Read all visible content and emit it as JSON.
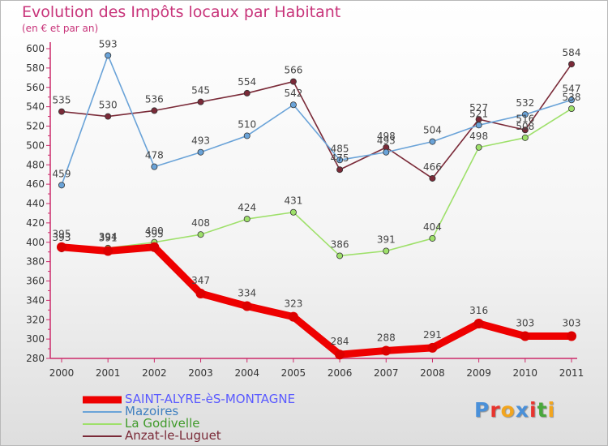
{
  "chart_data": {
    "type": "line",
    "title": "Evolution des Impôts locaux par Habitant",
    "subtitle": "(en € et par an)",
    "xlabel": "",
    "ylabel": "",
    "categories": [
      "2000",
      "2001",
      "2002",
      "2003",
      "2004",
      "2005",
      "2006",
      "2007",
      "2008",
      "2009",
      "2010",
      "2011"
    ],
    "ylim": [
      280,
      600
    ],
    "yticks": [
      "280",
      "300",
      "320",
      "340",
      "360",
      "380",
      "400",
      "420",
      "440",
      "460",
      "480",
      "500",
      "520",
      "540",
      "560",
      "580",
      "600"
    ],
    "grid": false,
    "legend_position": "bottom-left",
    "series": [
      {
        "name": "SAINT-ALYRE-èS-MONTAGNE",
        "color": "#ee0000",
        "legend_color": "#5a5aff",
        "values": [
          395,
          391,
          395,
          347,
          334,
          323,
          284,
          288,
          291,
          316,
          303,
          303
        ],
        "labels": [
          "395",
          "391",
          "395",
          "347",
          "334",
          "323",
          "284",
          "288",
          "291",
          "316",
          "303",
          "303"
        ]
      },
      {
        "name": "Mazoires",
        "color": "#6aa3d8",
        "legend_color": "#3f7fc0",
        "values": [
          459,
          593,
          478,
          493,
          510,
          542,
          485,
          493,
          504,
          521,
          532,
          547
        ],
        "labels": [
          "459",
          "593",
          "478",
          "493",
          "510",
          "542",
          "485",
          "493",
          "504",
          "521",
          "532",
          "547"
        ]
      },
      {
        "name": "La Godivelle",
        "color": "#9ee06a",
        "legend_color": "#3f9a2a",
        "values": [
          393,
          394,
          400,
          408,
          424,
          431,
          386,
          391,
          404,
          498,
          508,
          538
        ],
        "labels": [
          "393",
          "394",
          "400",
          "408",
          "424",
          "431",
          "386",
          "391",
          "404",
          "498",
          "508",
          "538"
        ]
      },
      {
        "name": "Anzat-le-Luguet",
        "color": "#7a2a38",
        "legend_color": "#7a2a38",
        "values": [
          535,
          530,
          536,
          545,
          554,
          566,
          475,
          498,
          466,
          527,
          516,
          584
        ],
        "labels": [
          "535",
          "530",
          "536",
          "545",
          "554",
          "566",
          "475",
          "498",
          "466",
          "527",
          "516",
          "584"
        ]
      }
    ]
  },
  "logo": {
    "text": "Proxiti",
    "colors": [
      "#4a90d9",
      "#e8342e",
      "#f2a51e",
      "#4a90d9",
      "#e8342e",
      "#49a83c",
      "#f2a51e"
    ]
  }
}
